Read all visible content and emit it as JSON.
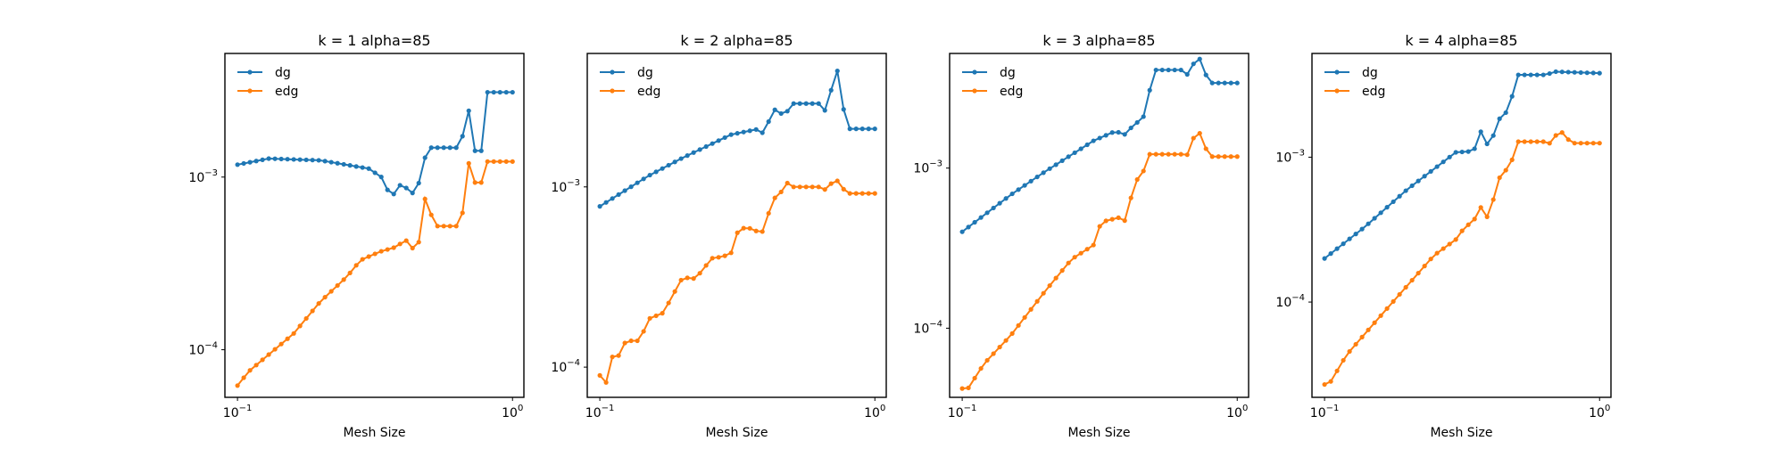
{
  "chart_data": [
    {
      "type": "line",
      "title": "k = 1 alpha=85",
      "xlabel": "Mesh Size",
      "ylabel": "",
      "xscale": "log",
      "yscale": "log",
      "xlim": [
        0.09,
        1.1
      ],
      "ylim": [
        5.3e-05,
        0.0052
      ],
      "x_ticks": [
        {
          "value": 0.1,
          "base": "10",
          "exp": "−1"
        },
        {
          "value": 1,
          "base": "10",
          "exp": "0"
        }
      ],
      "y_ticks": [
        {
          "value": 0.0001,
          "base": "10",
          "exp": "−4"
        },
        {
          "value": 0.001,
          "base": "10",
          "exp": "−3"
        }
      ],
      "legend": "top-left",
      "grid": false,
      "series": [
        {
          "name": "dg",
          "color": "#1f77b4",
          "anchors": [
            [
              0.1,
              0.00118
            ],
            [
              0.13,
              0.00128
            ],
            [
              0.2,
              0.00125
            ],
            [
              0.3,
              0.00112
            ],
            [
              0.34,
              0.00098
            ],
            [
              0.36,
              0.00075
            ],
            [
              0.4,
              0.00095
            ],
            [
              0.42,
              0.0008
            ],
            [
              0.45,
              0.00082
            ],
            [
              0.47,
              0.0012
            ],
            [
              0.5,
              0.00148
            ],
            [
              0.65,
              0.00148
            ],
            [
              0.69,
              0.00315
            ],
            [
              0.7,
              0.00142
            ],
            [
              0.78,
              0.00142
            ],
            [
              0.8,
              0.0031
            ],
            [
              1.0,
              0.0031
            ]
          ]
        },
        {
          "name": "edg",
          "color": "#ff7f0e",
          "anchors": [
            [
              0.1,
              6.2e-05
            ],
            [
              0.11,
              7.5e-05
            ],
            [
              0.16,
              0.000124
            ],
            [
              0.2,
              0.00019
            ],
            [
              0.25,
              0.000265
            ],
            [
              0.28,
              0.00033
            ],
            [
              0.33,
              0.00037
            ],
            [
              0.37,
              0.00039
            ],
            [
              0.41,
              0.00043
            ],
            [
              0.45,
              0.00036
            ],
            [
              0.48,
              0.00075
            ],
            [
              0.5,
              0.00065
            ],
            [
              0.52,
              0.00052
            ],
            [
              0.65,
              0.00052
            ],
            [
              0.69,
              0.00124
            ],
            [
              0.72,
              0.00093
            ],
            [
              0.78,
              0.00093
            ],
            [
              0.8,
              0.00123
            ],
            [
              1.0,
              0.00123
            ]
          ]
        }
      ]
    },
    {
      "type": "line",
      "title": "k = 2 alpha=85",
      "xlabel": "Mesh Size",
      "ylabel": "",
      "xscale": "log",
      "yscale": "log",
      "xlim": [
        0.09,
        1.1
      ],
      "ylim": [
        6.8e-05,
        0.0055
      ],
      "x_ticks": [
        {
          "value": 0.1,
          "base": "10",
          "exp": "−1"
        },
        {
          "value": 1,
          "base": "10",
          "exp": "0"
        }
      ],
      "y_ticks": [
        {
          "value": 0.0001,
          "base": "10",
          "exp": "−4"
        },
        {
          "value": 0.001,
          "base": "10",
          "exp": "−3"
        }
      ],
      "legend": "top-left",
      "grid": false,
      "series": [
        {
          "name": "dg",
          "color": "#1f77b4",
          "anchors": [
            [
              0.1,
              0.00078
            ],
            [
              0.15,
              0.00115
            ],
            [
              0.2,
              0.00145
            ],
            [
              0.3,
              0.00195
            ],
            [
              0.38,
              0.0021
            ],
            [
              0.4,
              0.0019
            ],
            [
              0.42,
              0.0027
            ],
            [
              0.45,
              0.00265
            ],
            [
              0.47,
              0.00235
            ],
            [
              0.49,
              0.0029
            ],
            [
              0.6,
              0.0029
            ],
            [
              0.65,
              0.0029
            ],
            [
              0.68,
              0.0021
            ],
            [
              0.7,
              0.0044
            ],
            [
              0.75,
              0.0044
            ],
            [
              0.78,
              0.0021
            ],
            [
              1.0,
              0.0021
            ]
          ]
        },
        {
          "name": "edg",
          "color": "#ff7f0e",
          "anchors": [
            [
              0.1,
              9e-05
            ],
            [
              0.105,
              8e-05
            ],
            [
              0.11,
              0.000115
            ],
            [
              0.115,
              0.00011
            ],
            [
              0.125,
              0.000142
            ],
            [
              0.13,
              0.00014
            ],
            [
              0.14,
              0.00014
            ],
            [
              0.15,
              0.000185
            ],
            [
              0.17,
              0.0002
            ],
            [
              0.18,
              0.000235
            ],
            [
              0.2,
              0.000315
            ],
            [
              0.22,
              0.00031
            ],
            [
              0.24,
              0.00035
            ],
            [
              0.25,
              0.0004
            ],
            [
              0.28,
              0.00041
            ],
            [
              0.3,
              0.00043
            ],
            [
              0.32,
              0.00059
            ],
            [
              0.35,
              0.00059
            ],
            [
              0.38,
              0.00056
            ],
            [
              0.4,
              0.00057
            ],
            [
              0.42,
              0.00086
            ],
            [
              0.45,
              0.00088
            ],
            [
              0.47,
              0.00108
            ],
            [
              0.5,
              0.001
            ],
            [
              0.6,
              0.001
            ],
            [
              0.65,
              0.001
            ],
            [
              0.67,
              0.00092
            ],
            [
              0.7,
              0.00108
            ],
            [
              0.75,
              0.00108
            ],
            [
              0.78,
              0.00092
            ],
            [
              1.0,
              0.00092
            ]
          ]
        }
      ]
    },
    {
      "type": "line",
      "title": "k = 3 alpha=85",
      "xlabel": "Mesh Size",
      "ylabel": "",
      "xscale": "log",
      "yscale": "log",
      "xlim": [
        0.09,
        1.1
      ],
      "ylim": [
        3.7e-05,
        0.0052
      ],
      "x_ticks": [
        {
          "value": 0.1,
          "base": "10",
          "exp": "−1"
        },
        {
          "value": 1,
          "base": "10",
          "exp": "0"
        }
      ],
      "y_ticks": [
        {
          "value": 0.0001,
          "base": "10",
          "exp": "−4"
        },
        {
          "value": 0.001,
          "base": "10",
          "exp": "−3"
        }
      ],
      "legend": "top-left",
      "grid": false,
      "series": [
        {
          "name": "dg",
          "color": "#1f77b4",
          "anchors": [
            [
              0.1,
              0.0004
            ],
            [
              0.15,
              0.00068
            ],
            [
              0.2,
              0.00095
            ],
            [
              0.3,
              0.00148
            ],
            [
              0.36,
              0.0017
            ],
            [
              0.4,
              0.0016
            ],
            [
              0.42,
              0.00195
            ],
            [
              0.45,
              0.0019
            ],
            [
              0.47,
              0.0026
            ],
            [
              0.5,
              0.0041
            ],
            [
              0.65,
              0.0041
            ],
            [
              0.67,
              0.0035
            ],
            [
              0.7,
              0.0048
            ],
            [
              0.75,
              0.0048
            ],
            [
              0.78,
              0.0034
            ],
            [
              1.0,
              0.0034
            ]
          ]
        },
        {
          "name": "edg",
          "color": "#ff7f0e",
          "anchors": [
            [
              0.1,
              4.2e-05
            ],
            [
              0.105,
              4.2e-05
            ],
            [
              0.12,
              6e-05
            ],
            [
              0.15,
              9e-05
            ],
            [
              0.2,
              0.00017
            ],
            [
              0.25,
              0.00027
            ],
            [
              0.3,
              0.00033
            ],
            [
              0.32,
              0.00046
            ],
            [
              0.37,
              0.00049
            ],
            [
              0.38,
              0.00046
            ],
            [
              0.4,
              0.00048
            ],
            [
              0.42,
              0.00084
            ],
            [
              0.45,
              0.00086
            ],
            [
              0.47,
              0.00122
            ],
            [
              0.65,
              0.00122
            ],
            [
              0.67,
              0.0012
            ],
            [
              0.7,
              0.00165
            ],
            [
              0.75,
              0.00165
            ],
            [
              0.78,
              0.00118
            ],
            [
              1.0,
              0.00118
            ]
          ]
        }
      ]
    },
    {
      "type": "line",
      "title": "k = 4 alpha=85",
      "xlabel": "Mesh Size",
      "ylabel": "",
      "xscale": "log",
      "yscale": "log",
      "xlim": [
        0.09,
        1.1
      ],
      "ylim": [
        2.2e-05,
        0.0052
      ],
      "x_ticks": [
        {
          "value": 0.1,
          "base": "10",
          "exp": "−1"
        },
        {
          "value": 1,
          "base": "10",
          "exp": "0"
        }
      ],
      "y_ticks": [
        {
          "value": 0.0001,
          "base": "10",
          "exp": "−4"
        },
        {
          "value": 0.001,
          "base": "10",
          "exp": "−3"
        }
      ],
      "legend": "top-left",
      "grid": false,
      "series": [
        {
          "name": "dg",
          "color": "#1f77b4",
          "anchors": [
            [
              0.1,
              0.0002
            ],
            [
              0.14,
              0.00033
            ],
            [
              0.2,
              0.0006
            ],
            [
              0.3,
              0.00108
            ],
            [
              0.35,
              0.0011
            ],
            [
              0.36,
              0.00155
            ],
            [
              0.38,
              0.00145
            ],
            [
              0.4,
              0.00105
            ],
            [
              0.42,
              0.0018
            ],
            [
              0.45,
              0.0019
            ],
            [
              0.48,
              0.0026
            ],
            [
              0.5,
              0.0037
            ],
            [
              0.65,
              0.0037
            ],
            [
              0.67,
              0.0039
            ],
            [
              1.0,
              0.0038
            ]
          ]
        },
        {
          "name": "edg",
          "color": "#ff7f0e",
          "anchors": [
            [
              0.1,
              2.7e-05
            ],
            [
              0.105,
              2.8e-05
            ],
            [
              0.12,
              4.3e-05
            ],
            [
              0.15,
              7e-05
            ],
            [
              0.2,
              0.00013
            ],
            [
              0.25,
              0.00021
            ],
            [
              0.3,
              0.00027
            ],
            [
              0.32,
              0.00032
            ],
            [
              0.35,
              0.00037
            ],
            [
              0.37,
              0.00045
            ],
            [
              0.4,
              0.00036
            ],
            [
              0.42,
              0.00068
            ],
            [
              0.45,
              0.00078
            ],
            [
              0.48,
              0.00095
            ],
            [
              0.5,
              0.00128
            ],
            [
              0.65,
              0.00128
            ],
            [
              0.67,
              0.0012
            ],
            [
              0.7,
              0.00148
            ],
            [
              0.75,
              0.00148
            ],
            [
              0.78,
              0.00125
            ],
            [
              1.0,
              0.00125
            ]
          ]
        }
      ]
    }
  ]
}
